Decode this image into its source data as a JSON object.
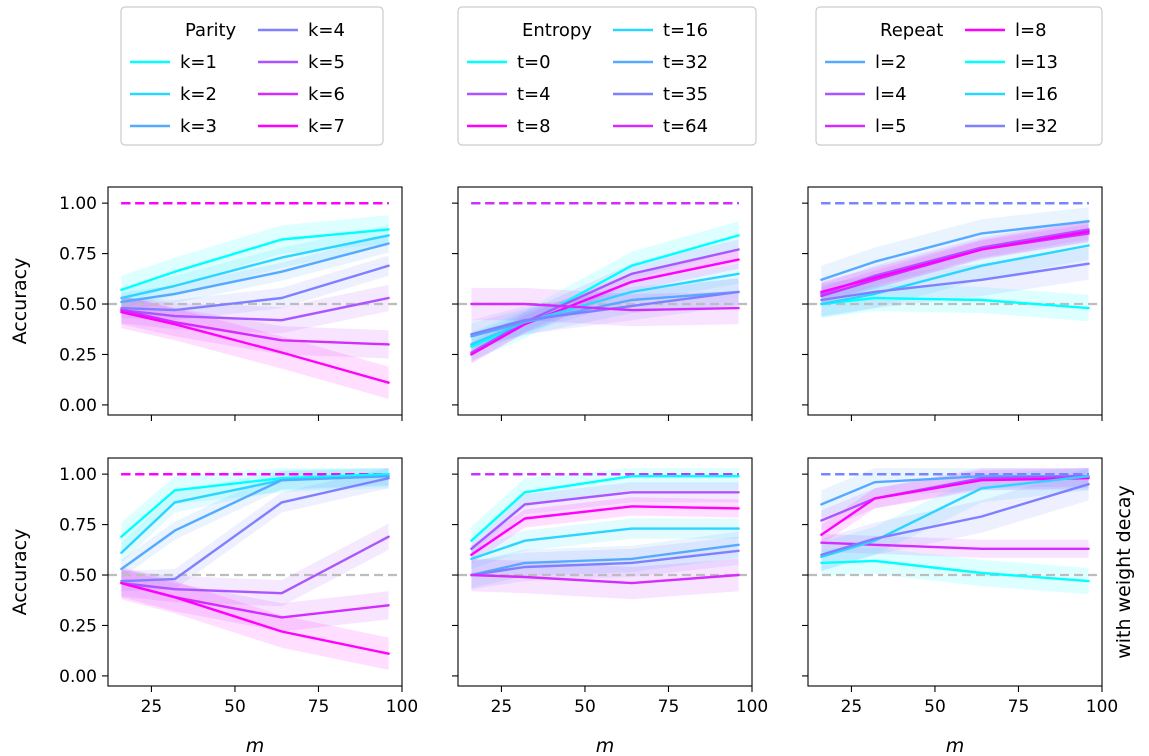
{
  "figure": {
    "row_labels": [
      "",
      "with weight decay"
    ],
    "y_axis_label": "Accuracy",
    "x_axis_label": "m",
    "x_ticks": [
      25,
      50,
      75,
      100
    ],
    "y_ticks": [
      "0.00",
      "0.25",
      "0.50",
      "0.75",
      "1.00"
    ],
    "baseline": 0.5,
    "baseline_color": "#bdbdbd",
    "reference_line": 1.0
  },
  "chart_data": [
    {
      "type": "line",
      "task": "Parity",
      "row": "standard",
      "x": [
        16,
        32,
        64,
        96
      ],
      "xlim": [
        12,
        100
      ],
      "ylim": [
        -0.05,
        1.08
      ],
      "legend_title": "Parity",
      "series": [
        {
          "name": "k=1",
          "color": "#00ffff",
          "values": [
            0.57,
            0.66,
            0.82,
            0.87
          ]
        },
        {
          "name": "k=2",
          "color": "#2ad5ff",
          "values": [
            0.53,
            0.59,
            0.73,
            0.84
          ]
        },
        {
          "name": "k=3",
          "color": "#55aaff",
          "values": [
            0.51,
            0.55,
            0.66,
            0.8
          ]
        },
        {
          "name": "k=4",
          "color": "#7f80ff",
          "values": [
            0.48,
            0.47,
            0.53,
            0.69
          ]
        },
        {
          "name": "k=5",
          "color": "#aa55ff",
          "values": [
            0.47,
            0.44,
            0.42,
            0.53
          ]
        },
        {
          "name": "k=6",
          "color": "#d42bff",
          "values": [
            0.47,
            0.41,
            0.32,
            0.3
          ]
        },
        {
          "name": "k=7",
          "color": "#ff00ff",
          "values": [
            0.46,
            0.4,
            0.26,
            0.11
          ]
        }
      ]
    },
    {
      "type": "line",
      "task": "Entropy",
      "row": "standard",
      "x": [
        16,
        32,
        64,
        96
      ],
      "xlim": [
        12,
        100
      ],
      "ylim": [
        -0.05,
        1.08
      ],
      "legend_title": "Entropy",
      "series": [
        {
          "name": "t=0",
          "color": "#00ffff",
          "values": [
            0.29,
            0.4,
            0.69,
            0.84
          ]
        },
        {
          "name": "t=4",
          "color": "#aa55ff",
          "values": [
            0.26,
            0.41,
            0.65,
            0.77
          ]
        },
        {
          "name": "t=8",
          "color": "#ff00ff",
          "values": [
            0.25,
            0.4,
            0.61,
            0.72
          ]
        },
        {
          "name": "t=16",
          "color": "#2ad5ff",
          "values": [
            0.3,
            0.41,
            0.56,
            0.65
          ]
        },
        {
          "name": "t=32",
          "color": "#55aaff",
          "values": [
            0.34,
            0.41,
            0.52,
            0.56
          ]
        },
        {
          "name": "t=35",
          "color": "#7f80ff",
          "values": [
            0.35,
            0.42,
            0.49,
            0.56
          ]
        },
        {
          "name": "t=64",
          "color": "#d42bff",
          "values": [
            0.5,
            0.5,
            0.47,
            0.48
          ]
        }
      ]
    },
    {
      "type": "line",
      "task": "Repeat",
      "row": "standard",
      "x": [
        16,
        32,
        64,
        96
      ],
      "xlim": [
        12,
        100
      ],
      "ylim": [
        -0.05,
        1.08
      ],
      "legend_title": "Repeat",
      "series": [
        {
          "name": "l=2",
          "color": "#55aaff",
          "values": [
            0.62,
            0.71,
            0.85,
            0.91
          ]
        },
        {
          "name": "l=4",
          "color": "#aa55ff",
          "values": [
            0.55,
            0.64,
            0.78,
            0.87
          ]
        },
        {
          "name": "l=5",
          "color": "#d42bff",
          "values": [
            0.54,
            0.62,
            0.77,
            0.85
          ]
        },
        {
          "name": "l=8",
          "color": "#ff00ff",
          "values": [
            0.56,
            0.63,
            0.77,
            0.86
          ]
        },
        {
          "name": "l=13",
          "color": "#00ffff",
          "values": [
            0.5,
            0.53,
            0.52,
            0.48
          ]
        },
        {
          "name": "l=16",
          "color": "#2ad5ff",
          "values": [
            0.5,
            0.55,
            0.69,
            0.79
          ]
        },
        {
          "name": "l=32",
          "color": "#7f80ff",
          "values": [
            0.52,
            0.56,
            0.62,
            0.7
          ]
        }
      ]
    },
    {
      "type": "line",
      "task": "Parity",
      "row": "with weight decay",
      "x": [
        16,
        32,
        64,
        96
      ],
      "xlim": [
        12,
        100
      ],
      "ylim": [
        -0.05,
        1.08
      ],
      "series": [
        {
          "name": "k=1",
          "color": "#00ffff",
          "values": [
            0.69,
            0.92,
            0.98,
            1.0
          ]
        },
        {
          "name": "k=2",
          "color": "#2ad5ff",
          "values": [
            0.61,
            0.86,
            0.97,
            0.99
          ]
        },
        {
          "name": "k=3",
          "color": "#55aaff",
          "values": [
            0.53,
            0.72,
            0.97,
            0.99
          ]
        },
        {
          "name": "k=4",
          "color": "#7f80ff",
          "values": [
            0.47,
            0.48,
            0.86,
            0.98
          ]
        },
        {
          "name": "k=5",
          "color": "#aa55ff",
          "values": [
            0.46,
            0.43,
            0.41,
            0.69
          ]
        },
        {
          "name": "k=6",
          "color": "#d42bff",
          "values": [
            0.46,
            0.39,
            0.29,
            0.35
          ]
        },
        {
          "name": "k=7",
          "color": "#ff00ff",
          "values": [
            0.46,
            0.39,
            0.22,
            0.11
          ]
        }
      ]
    },
    {
      "type": "line",
      "task": "Entropy",
      "row": "with weight decay",
      "x": [
        16,
        32,
        64,
        96
      ],
      "xlim": [
        12,
        100
      ],
      "ylim": [
        -0.05,
        1.08
      ],
      "series": [
        {
          "name": "t=0",
          "color": "#00ffff",
          "values": [
            0.67,
            0.91,
            0.99,
            0.99
          ]
        },
        {
          "name": "t=4",
          "color": "#aa55ff",
          "values": [
            0.63,
            0.85,
            0.91,
            0.91
          ]
        },
        {
          "name": "t=8",
          "color": "#ff00ff",
          "values": [
            0.6,
            0.78,
            0.84,
            0.83
          ]
        },
        {
          "name": "t=16",
          "color": "#2ad5ff",
          "values": [
            0.58,
            0.67,
            0.73,
            0.73
          ]
        },
        {
          "name": "t=32",
          "color": "#55aaff",
          "values": [
            0.5,
            0.56,
            0.58,
            0.65
          ]
        },
        {
          "name": "t=35",
          "color": "#7f80ff",
          "values": [
            0.5,
            0.54,
            0.56,
            0.62
          ]
        },
        {
          "name": "t=64",
          "color": "#d42bff",
          "values": [
            0.5,
            0.49,
            0.46,
            0.5
          ]
        }
      ]
    },
    {
      "type": "line",
      "task": "Repeat",
      "row": "with weight decay",
      "x": [
        16,
        32,
        64,
        96
      ],
      "xlim": [
        12,
        100
      ],
      "ylim": [
        -0.05,
        1.08
      ],
      "series": [
        {
          "name": "l=2",
          "color": "#55aaff",
          "values": [
            0.85,
            0.96,
            0.99,
            0.99
          ]
        },
        {
          "name": "l=4",
          "color": "#aa55ff",
          "values": [
            0.77,
            0.88,
            0.98,
            0.99
          ]
        },
        {
          "name": "l=5",
          "color": "#d42bff",
          "values": [
            0.66,
            0.65,
            0.63,
            0.63
          ]
        },
        {
          "name": "l=8",
          "color": "#ff00ff",
          "values": [
            0.7,
            0.88,
            0.97,
            0.98
          ]
        },
        {
          "name": "l=13",
          "color": "#00ffff",
          "values": [
            0.56,
            0.57,
            0.51,
            0.47
          ]
        },
        {
          "name": "l=16",
          "color": "#2ad5ff",
          "values": [
            0.59,
            0.67,
            0.93,
            0.99
          ]
        },
        {
          "name": "l=32",
          "color": "#7f80ff",
          "values": [
            0.6,
            0.68,
            0.79,
            0.95
          ]
        }
      ]
    }
  ]
}
